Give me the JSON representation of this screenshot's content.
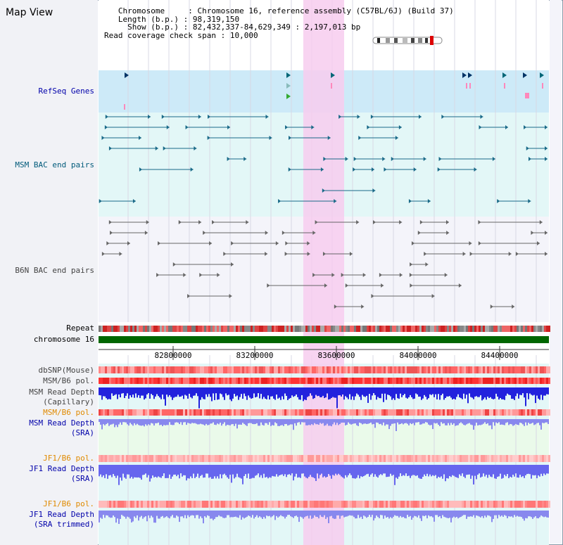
{
  "header": {
    "title": "Map View",
    "chromosome_label": "Chromosome",
    "chromosome_value": "Chromosome 16, reference assembly (C57BL/6J) (Build 37)",
    "length_label": "Length (b.p.)",
    "length_value": "98,319,150",
    "show_label": "Show (b.p.)",
    "show_value": "82,432,337-84,629,349 : 2,197,013 bp",
    "coverage_label": "Read coverage check span",
    "coverage_value": "10,000"
  },
  "tracks": {
    "refseq": "RefSeq Genes",
    "msm_bac": "MSM BAC end pairs",
    "b6n_bac": "B6N BAC end pairs",
    "repeat": "Repeat",
    "chromosome": "chromosome 16",
    "dbsnp": "dbSNP(Mouse)",
    "msm_b6_pol_1": "MSM/B6 pol.",
    "msm_depth_cap_1": "MSM Read Depth",
    "msm_depth_cap_2": "(Capillary)",
    "msm_b6_pol_2": "MSM/B6 pol.",
    "msm_depth_sra_1": "MSM Read Depth",
    "msm_depth_sra_2": "(SRA)",
    "jf1_b6_pol_1": "JF1/B6 pol.",
    "jf1_depth_sra_1": "JF1 Read Depth",
    "jf1_depth_sra_2": "(SRA)",
    "jf1_b6_pol_2": "JF1/B6 pol.",
    "jf1_depth_trim_1": "JF1 Read Depth",
    "jf1_depth_trim_2": "(SRA trimmed)"
  },
  "axis": {
    "ticks": [
      "82800000",
      "83200000",
      "83600000",
      "84000000",
      "84400000"
    ]
  },
  "colors": {
    "label_blue": "#0000aa",
    "label_teal": "#005a7a",
    "label_gray": "#444444",
    "label_orange": "#e08a00",
    "highlight": "#f7ccee",
    "refseq_bg": "#cdeaf8",
    "msm_bg": "#e3f7f7",
    "b6n_bg": "#f4f4fa",
    "sra_bg": "#eafaea",
    "chromosome_bar": "#006600"
  }
}
